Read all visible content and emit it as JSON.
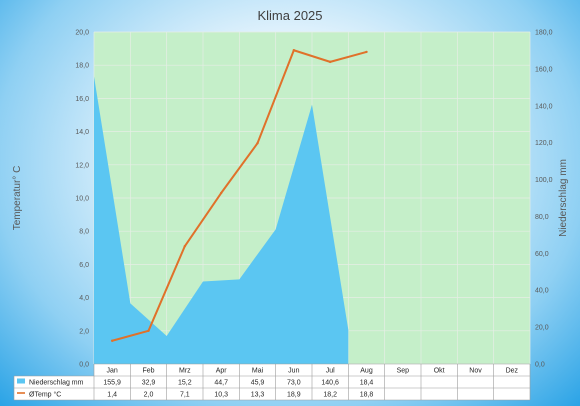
{
  "chart_data": {
    "type": "line",
    "title": "Klima 2025",
    "categories": [
      "Jan",
      "Feb",
      "Mrz",
      "Apr",
      "Mai",
      "Jun",
      "Jul",
      "Aug",
      "Sep",
      "Okt",
      "Nov",
      "Dez"
    ],
    "series": [
      {
        "name": "Niederschlag mm",
        "type": "area",
        "axis": "right",
        "color": "#5bc6f2",
        "values": [
          155.9,
          32.9,
          15.2,
          44.7,
          45.9,
          73.0,
          140.6,
          18.4,
          null,
          null,
          null,
          null
        ],
        "labels": [
          "155,9",
          "32,9",
          "15,2",
          "44,7",
          "45,9",
          "73,0",
          "140,6",
          "18,4",
          "",
          "",
          "",
          ""
        ]
      },
      {
        "name": "ØTemp °C",
        "type": "line",
        "axis": "left",
        "color": "#e0712a",
        "values": [
          1.4,
          2.0,
          7.1,
          10.3,
          13.3,
          18.9,
          18.2,
          18.8,
          null,
          null,
          null,
          null
        ],
        "labels": [
          "1,4",
          "2,0",
          "7,1",
          "10,3",
          "13,3",
          "18,9",
          "18,2",
          "18,8",
          "",
          "",
          "",
          ""
        ]
      }
    ],
    "ylabel": "Temperatur° C",
    "y2label": "Niederschlag mm",
    "ylim": [
      0,
      20
    ],
    "y2lim": [
      0,
      180
    ],
    "yticks": [
      "0,0",
      "2,0",
      "4,0",
      "6,0",
      "8,0",
      "10,0",
      "12,0",
      "14,0",
      "16,0",
      "18,0",
      "20,0"
    ],
    "y2ticks": [
      "0,0",
      "20,0",
      "40,0",
      "60,0",
      "80,0",
      "100,0",
      "120,0",
      "140,0",
      "160,0",
      "180,0"
    ],
    "plot_background": "#c5efc9",
    "grid": true,
    "data_table": true
  }
}
